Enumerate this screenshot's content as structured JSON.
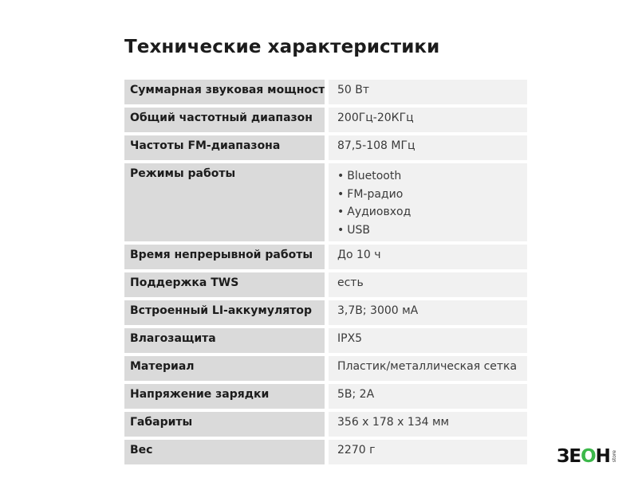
{
  "title": "Технические характеристики",
  "specs": [
    {
      "label": "Суммарная звуковая мощность",
      "value": "50 Вт"
    },
    {
      "label": "Общий частотный диапазон",
      "value": "200Гц-20КГц"
    },
    {
      "label": "Частоты FM-диапазона",
      "value": "87,5-108 МГц"
    },
    {
      "label": "Режимы работы",
      "items": [
        "Bluetooth",
        "FM-радио",
        "Аудиовход",
        "USB"
      ]
    },
    {
      "label": "Время непрерывной работы",
      "value": "До 10 ч"
    },
    {
      "label": "Поддержка TWS",
      "value": "есть"
    },
    {
      "label": "Встроенный LI-аккумулятор",
      "value": "3,7В; 3000 мА"
    },
    {
      "label": "Влагозащита",
      "value": "IPX5"
    },
    {
      "label": "Материал",
      "value": "Пластик/металлическая сетка"
    },
    {
      "label": "Напряжение зарядки",
      "value": "5В; 2А"
    },
    {
      "label": "Габариты",
      "value": "356 х 178 х 134 мм"
    },
    {
      "label": "Вес",
      "value": "2270 г"
    }
  ],
  "logo": {
    "part1": "ЗЕ",
    "part2": "О",
    "part3": "Н",
    "sub": "store",
    "accent_color": "#3cb84a"
  }
}
